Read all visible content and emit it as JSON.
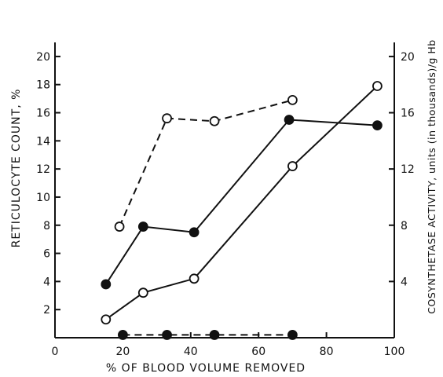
{
  "chart_data": {
    "type": "line",
    "xlabel": "% OF BLOOD VOLUME REMOVED",
    "ylabel_left": "RETICULOCYTE COUNT, %",
    "ylabel_right": "COSYNTHETASE ACTIVITY, units (in thousands)/g Hb",
    "xlim": [
      0,
      100
    ],
    "ylim_left": [
      0,
      21
    ],
    "ylim_right": [
      0,
      21
    ],
    "x_ticks": [
      "0",
      "20",
      "40",
      "60",
      "80",
      "100"
    ],
    "x_tick_values": [
      0,
      20,
      40,
      60,
      80,
      100
    ],
    "y_left_ticks": [
      "2",
      "4",
      "6",
      "8",
      "10",
      "12",
      "14",
      "16",
      "18",
      "20"
    ],
    "y_left_tick_values": [
      2,
      4,
      6,
      8,
      10,
      12,
      14,
      16,
      18,
      20
    ],
    "y_right_ticks": [
      "4",
      "8",
      "12",
      "16",
      "20"
    ],
    "y_right_tick_values": [
      4,
      8,
      12,
      16,
      20
    ],
    "grid": false,
    "series": [
      {
        "marker": "open-circle",
        "line": "dashed",
        "x": [
          19,
          33,
          47,
          70
        ],
        "y": [
          7.9,
          15.6,
          15.4,
          16.9
        ]
      },
      {
        "marker": "filled-circle",
        "line": "solid",
        "x": [
          15,
          26,
          41,
          69,
          95
        ],
        "y": [
          3.8,
          7.9,
          7.5,
          15.5,
          15.1
        ]
      },
      {
        "marker": "open-circle",
        "line": "solid",
        "x": [
          15,
          26,
          41,
          70,
          95
        ],
        "y": [
          1.3,
          3.2,
          4.2,
          12.2,
          17.9
        ]
      },
      {
        "marker": "filled-circle",
        "line": "dashed",
        "x": [
          20,
          33,
          47,
          70
        ],
        "y": [
          0.2,
          0.2,
          0.2,
          0.2
        ]
      }
    ]
  }
}
